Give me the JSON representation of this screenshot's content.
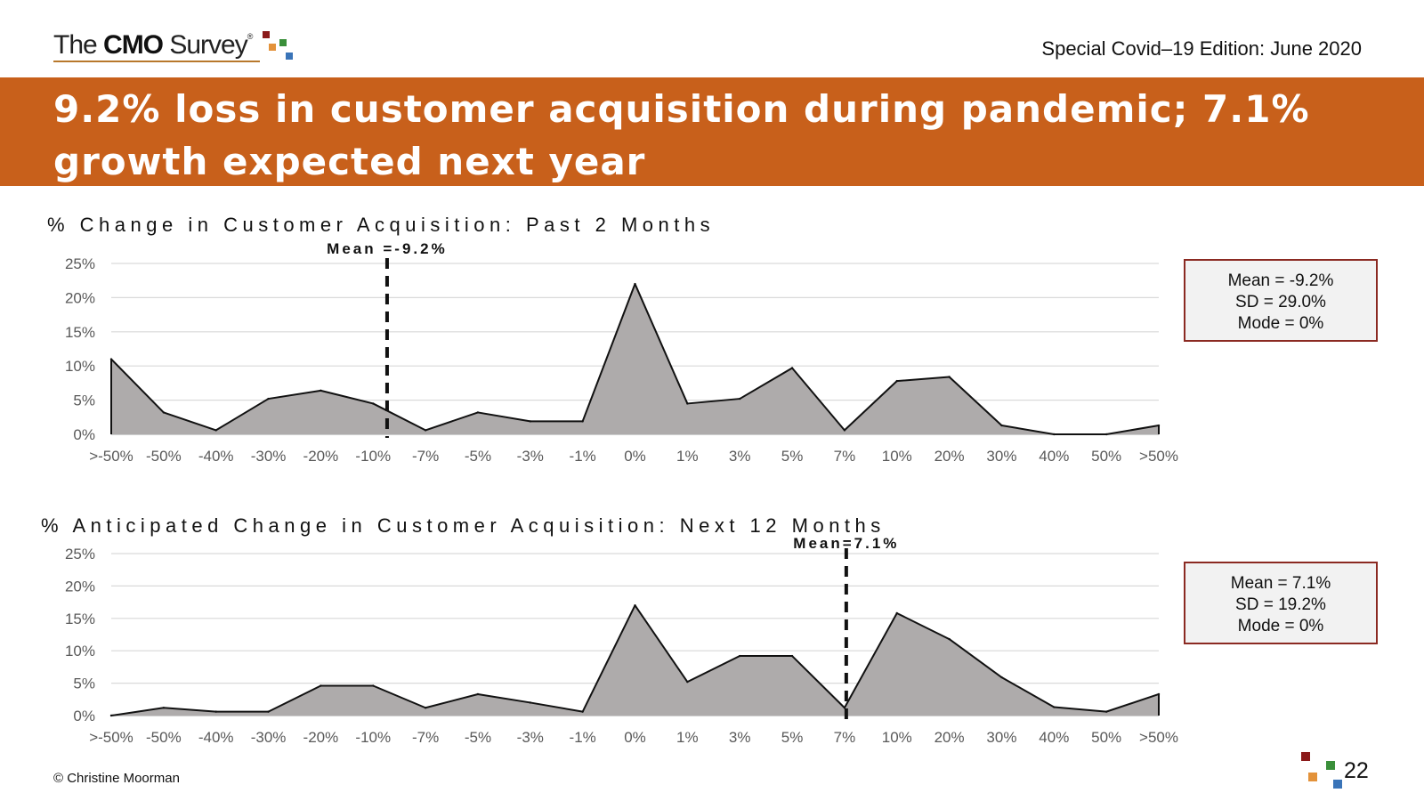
{
  "header": {
    "logo": {
      "prefix": "The ",
      "brand": "CMO",
      "suffix": " Survey",
      "registered": "®"
    },
    "edition": "Special Covid–19 Edition: June 2020",
    "title": "9.2% loss in customer acquisition during pandemic; 7.1% growth expected next year"
  },
  "colors": {
    "band": "#c8601b",
    "fill": "#aeabab",
    "border": "#8b2a22",
    "squares": [
      "#8b1a1a",
      "#e3923a",
      "#3a8f3a",
      "#3a74b8"
    ]
  },
  "chart_data": [
    {
      "type": "area",
      "title": "% Change in Customer Acquisition: Past 2 Months",
      "categories": [
        ">-50%",
        "-50%",
        "-40%",
        "-30%",
        "-20%",
        "-10%",
        "-7%",
        "-5%",
        "-3%",
        "-1%",
        "0%",
        "1%",
        "3%",
        "5%",
        "7%",
        "10%",
        "20%",
        "30%",
        "40%",
        "50%",
        ">50%"
      ],
      "values": [
        11.0,
        3.2,
        0.6,
        5.2,
        6.4,
        4.5,
        0.6,
        3.2,
        1.9,
        1.9,
        22.0,
        4.5,
        5.2,
        9.7,
        0.6,
        7.8,
        8.4,
        1.3,
        0.0,
        0.0,
        1.3
      ],
      "ylim": [
        0,
        25
      ],
      "yticks": [
        "0%",
        "5%",
        "10%",
        "15%",
        "20%",
        "25%"
      ],
      "mean_marker": {
        "label": "Mean =-9.2%",
        "value": -9.2
      },
      "stats": {
        "mean": "Mean = -9.2%",
        "sd": "SD = 29.0%",
        "mode": "Mode = 0%"
      }
    },
    {
      "type": "area",
      "title": "% Anticipated Change in Customer Acquisition: Next 12 Months",
      "categories": [
        ">-50%",
        "-50%",
        "-40%",
        "-30%",
        "-20%",
        "-10%",
        "-7%",
        "-5%",
        "-3%",
        "-1%",
        "0%",
        "1%",
        "3%",
        "5%",
        "7%",
        "10%",
        "20%",
        "30%",
        "40%",
        "50%",
        ">50%"
      ],
      "values": [
        0.0,
        1.2,
        0.6,
        0.6,
        4.6,
        4.6,
        1.2,
        3.3,
        2.0,
        0.6,
        17.0,
        5.2,
        9.2,
        9.2,
        1.2,
        15.8,
        11.8,
        5.9,
        1.3,
        0.6,
        3.3
      ],
      "ylim": [
        0,
        25
      ],
      "yticks": [
        "0%",
        "5%",
        "10%",
        "15%",
        "20%",
        "25%"
      ],
      "mean_marker": {
        "label": "Mean=7.1%",
        "value": 7.1
      },
      "stats": {
        "mean": "Mean = 7.1%",
        "sd": "SD = 19.2%",
        "mode": "Mode = 0%"
      }
    }
  ],
  "footer": {
    "copyright": "© Christine Moorman",
    "page": "22"
  }
}
